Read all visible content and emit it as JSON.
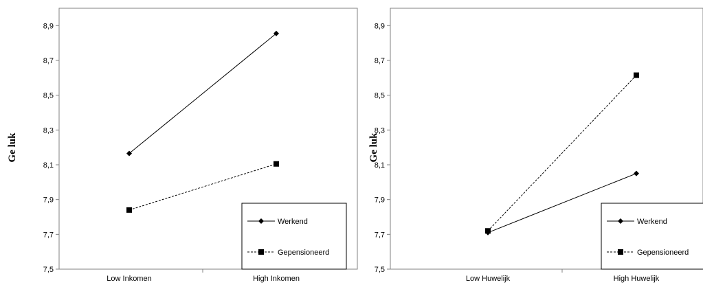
{
  "chart_data": [
    {
      "type": "line",
      "ylabel": "Ge luk",
      "ylim": [
        7.5,
        9.0
      ],
      "yticks": [
        "7,5",
        "7,7",
        "7,9",
        "8,1",
        "8,3",
        "8,5",
        "8,7",
        "8,9"
      ],
      "ytick_values": [
        7.5,
        7.7,
        7.9,
        8.1,
        8.3,
        8.5,
        8.7,
        8.9
      ],
      "categories": [
        "Low Inkomen",
        "High Inkomen"
      ],
      "grid": false,
      "legend_position": "bottom-right",
      "series": [
        {
          "name": "Werkend",
          "values": [
            8.165,
            8.855
          ],
          "marker": "diamond",
          "dash": "solid"
        },
        {
          "name": "Gepensioneerd",
          "values": [
            7.84,
            8.105
          ],
          "marker": "square",
          "dash": "dashed"
        }
      ]
    },
    {
      "type": "line",
      "ylabel": "Ge luk",
      "ylim": [
        7.5,
        9.0
      ],
      "yticks": [
        "7,5",
        "7,7",
        "7,9",
        "8,1",
        "8,3",
        "8,5",
        "8,7",
        "8,9"
      ],
      "ytick_values": [
        7.5,
        7.7,
        7.9,
        8.1,
        8.3,
        8.5,
        8.7,
        8.9
      ],
      "categories": [
        "Low Huwelijk",
        "High Huwelijk"
      ],
      "grid": false,
      "legend_position": "bottom-right",
      "series": [
        {
          "name": "Werkend",
          "values": [
            7.71,
            8.05
          ],
          "marker": "diamond",
          "dash": "solid"
        },
        {
          "name": "Gepensioneerd",
          "values": [
            7.72,
            8.615
          ],
          "marker": "square",
          "dash": "dashed"
        }
      ]
    }
  ]
}
